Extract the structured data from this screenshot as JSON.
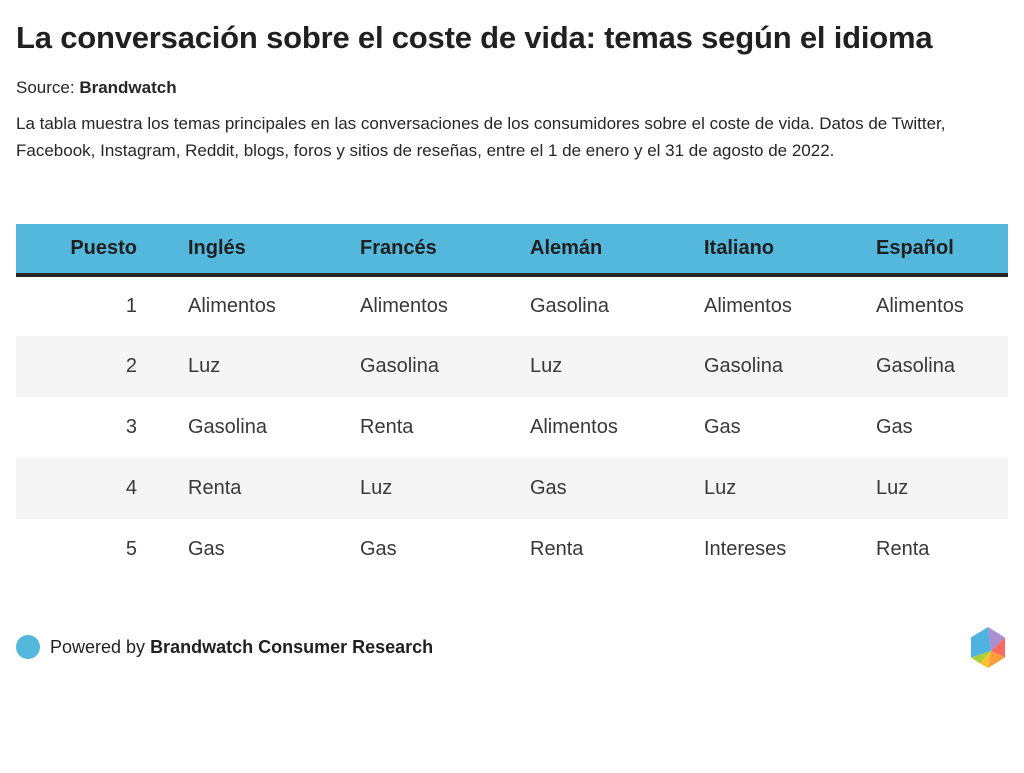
{
  "page": {
    "title": "La conversación sobre el coste de vida: temas según el idioma",
    "source_label": "Source: ",
    "source_name": "Brandwatch",
    "description": "La tabla muestra los temas principales en las conversaciones de los consumidores sobre el coste de vida. Datos de Twitter, Facebook, Instagram, Reddit, blogs, foros y sitios de reseñas, entre el 1 de enero y el 31 de agosto de 2022."
  },
  "chart_data": {
    "type": "table",
    "title": "La conversación sobre el coste de vida: temas según el idioma",
    "columns": [
      "Puesto",
      "Inglés",
      "Francés",
      "Alemán",
      "Italiano",
      "Español"
    ],
    "rows": [
      [
        "1",
        "Alimentos",
        "Alimentos",
        "Gasolina",
        "Alimentos",
        "Alimentos"
      ],
      [
        "2",
        "Luz",
        "Gasolina",
        "Luz",
        "Gasolina",
        "Gasolina"
      ],
      [
        "3",
        "Gasolina",
        "Renta",
        "Alimentos",
        "Gas",
        "Gas"
      ],
      [
        "4",
        "Renta",
        "Luz",
        "Gas",
        "Luz",
        "Luz"
      ],
      [
        "5",
        "Gas",
        "Gas",
        "Renta",
        "Intereses",
        "Renta"
      ]
    ],
    "layout": "striped-rows, rank column right-aligned, topic columns left-aligned",
    "legend_position": "none"
  },
  "footer": {
    "powered_by_label": "Powered by ",
    "brand_name": "Brandwatch Consumer Research"
  },
  "colors": {
    "header_bg": "#54b7dc",
    "header_border": "#262626",
    "row_alt_bg": "#f5f5f5",
    "bullet": "#54b7dc",
    "logo_facets": [
      "#4fb3e1",
      "#ab8fd0",
      "#f96b62",
      "#fa9e3e",
      "#fcc22d",
      "#a9cf3a"
    ]
  },
  "icons": {
    "powered_by_bullet": "circle-icon",
    "brand_logo": "brandwatch-hexagon-logo-icon"
  }
}
